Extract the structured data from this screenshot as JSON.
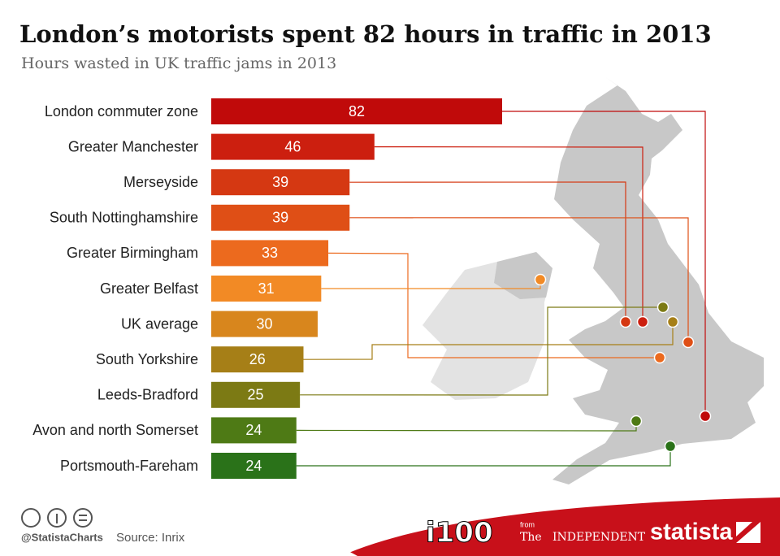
{
  "chart_data": {
    "type": "bar",
    "orientation": "horizontal",
    "title": "London’s motorists spent 82 hours in traffic in 2013",
    "subtitle": "Hours wasted in UK traffic jams in 2013",
    "categories": [
      "London commuter zone",
      "Greater Manchester",
      "Merseyside",
      "South Nottinghamshire",
      "Greater Birmingham",
      "Greater Belfast",
      "UK average",
      "South Yorkshire",
      "Leeds-Bradford",
      "Avon and north Somerset",
      "Portsmouth-Fareham"
    ],
    "values": [
      82,
      46,
      39,
      39,
      33,
      31,
      30,
      26,
      25,
      24,
      24
    ],
    "colors": [
      "#c00a0a",
      "#cc1f0f",
      "#d53812",
      "#df4f16",
      "#ec6a1e",
      "#f28a25",
      "#d8861d",
      "#a67f17",
      "#7c7a14",
      "#4e7a15",
      "#2a7219"
    ]
  },
  "footer": {
    "handle": "@StatistaCharts",
    "source": "Source: Inrix",
    "i100": "i100",
    "from": "from",
    "the": "The",
    "independent": "INDEPENDENT",
    "brand": "statista"
  }
}
